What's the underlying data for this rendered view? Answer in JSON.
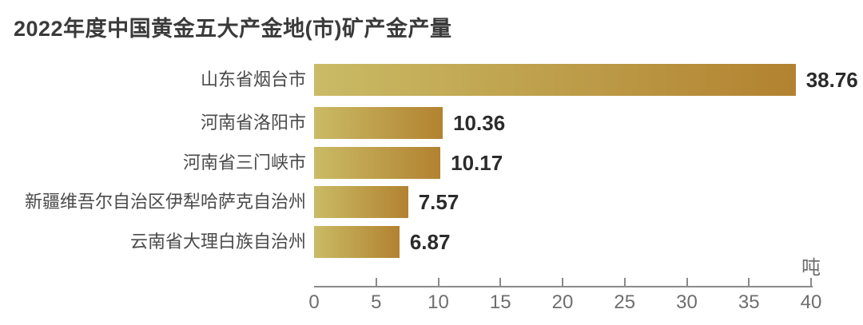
{
  "chart_data": {
    "type": "bar",
    "orientation": "horizontal",
    "title": "2022年度中国黄金五大产金地(市)矿产金产量",
    "categories": [
      "山东省烟台市",
      "河南省洛阳市",
      "河南省三门峡市",
      "新疆维吾尔自治区伊犁哈萨克自治州",
      "云南省大理白族自治州"
    ],
    "values": [
      38.76,
      10.36,
      10.17,
      7.57,
      6.87
    ],
    "value_labels": [
      "38.76",
      "10.36",
      "10.17",
      "7.57",
      "6.87"
    ],
    "unit_label": "吨",
    "xlabel": "",
    "ylabel": "",
    "xlim": [
      0,
      40
    ],
    "x_ticks": [
      0,
      5,
      10,
      15,
      20,
      25,
      30,
      35,
      40
    ],
    "grid": false,
    "legend": "none",
    "colors": {
      "background": "#FFFFFF",
      "bar_gradient_start": "#CABB66",
      "bar_gradient_end": "#B28230",
      "title_text": "#3A3A3A",
      "category_text": "#4A4A4A",
      "value_text": "#2B2B2B",
      "axis_line": "#8A8A8A",
      "tick_text": "#6E6E6E"
    }
  }
}
